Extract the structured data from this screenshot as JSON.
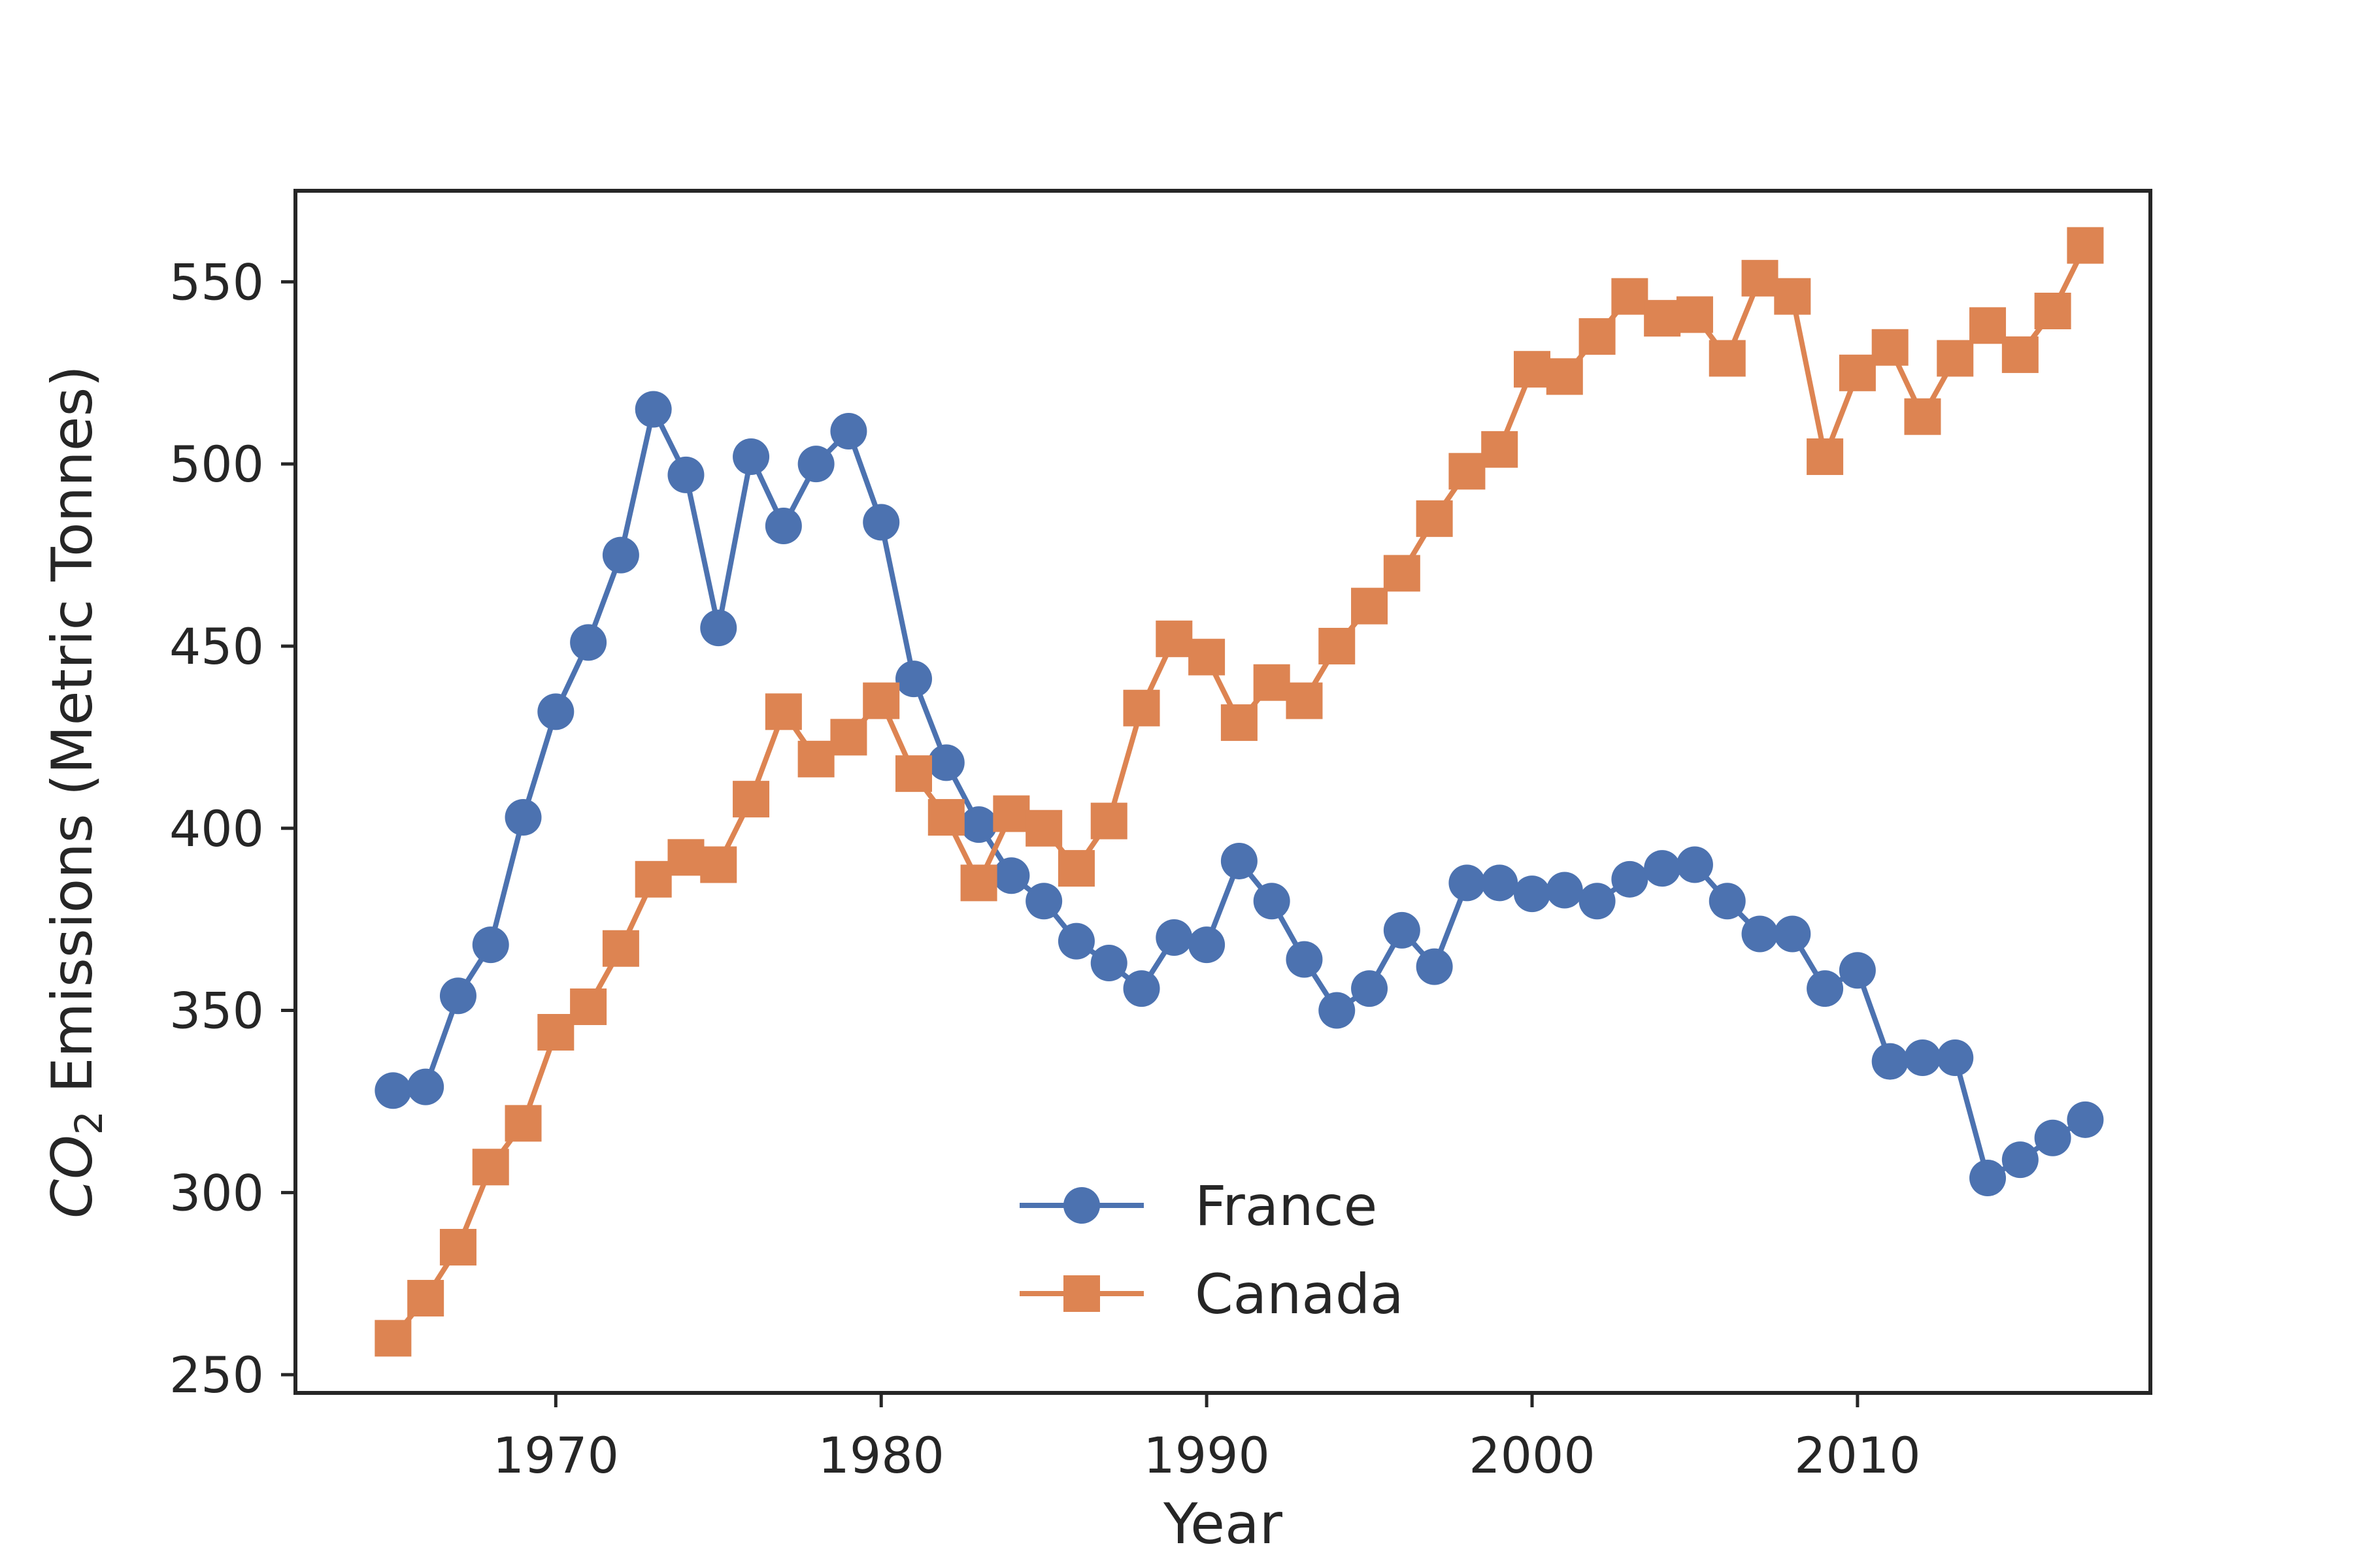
{
  "chart_data": {
    "type": "line",
    "title": "",
    "xlabel": "Year",
    "ylabel": {
      "main": "CO",
      "subscript": "2",
      "rest": " Emissions (Metric Tonnes)"
    },
    "xlim": [
      1962,
      2019
    ],
    "ylim": [
      245,
      575
    ],
    "xticks": [
      1970,
      1980,
      1990,
      2000,
      2010
    ],
    "yticks": [
      250,
      300,
      350,
      400,
      450,
      500,
      550
    ],
    "grid": false,
    "legend_position": "lower-center",
    "x": [
      1965,
      1966,
      1967,
      1968,
      1969,
      1970,
      1971,
      1972,
      1973,
      1974,
      1975,
      1976,
      1977,
      1978,
      1979,
      1980,
      1981,
      1982,
      1983,
      1984,
      1985,
      1986,
      1987,
      1988,
      1989,
      1990,
      1991,
      1992,
      1993,
      1994,
      1995,
      1996,
      1997,
      1998,
      1999,
      2000,
      2001,
      2002,
      2003,
      2004,
      2005,
      2006,
      2007,
      2008,
      2009,
      2010,
      2011,
      2012,
      2013,
      2014,
      2015,
      2016,
      2017
    ],
    "series": [
      {
        "name": "France",
        "color": "#4c72b0",
        "marker": "circle",
        "values": [
          328,
          329,
          354,
          368,
          403,
          432,
          451,
          475,
          515,
          497,
          455,
          502,
          483,
          500,
          509,
          484,
          441,
          418,
          401,
          387,
          380,
          369,
          363,
          356,
          370,
          368,
          391,
          380,
          364,
          350,
          356,
          372,
          362,
          385,
          385,
          382,
          383,
          380,
          386,
          389,
          390,
          380,
          371,
          371,
          356,
          361,
          336,
          337,
          337,
          304,
          309,
          315,
          320
        ]
      },
      {
        "name": "Canada",
        "color": "#dd8452",
        "marker": "square",
        "values": [
          260,
          271,
          285,
          307,
          319,
          344,
          351,
          367,
          386,
          392,
          390,
          408,
          432,
          419,
          425,
          435,
          415,
          403,
          385,
          404,
          400,
          389,
          402,
          433,
          452,
          447,
          429,
          440,
          435,
          450,
          461,
          470,
          485,
          498,
          504,
          526,
          524,
          535,
          546,
          540,
          541,
          529,
          551,
          546,
          502,
          525,
          532,
          513,
          529,
          538,
          530,
          542,
          560
        ]
      }
    ]
  }
}
